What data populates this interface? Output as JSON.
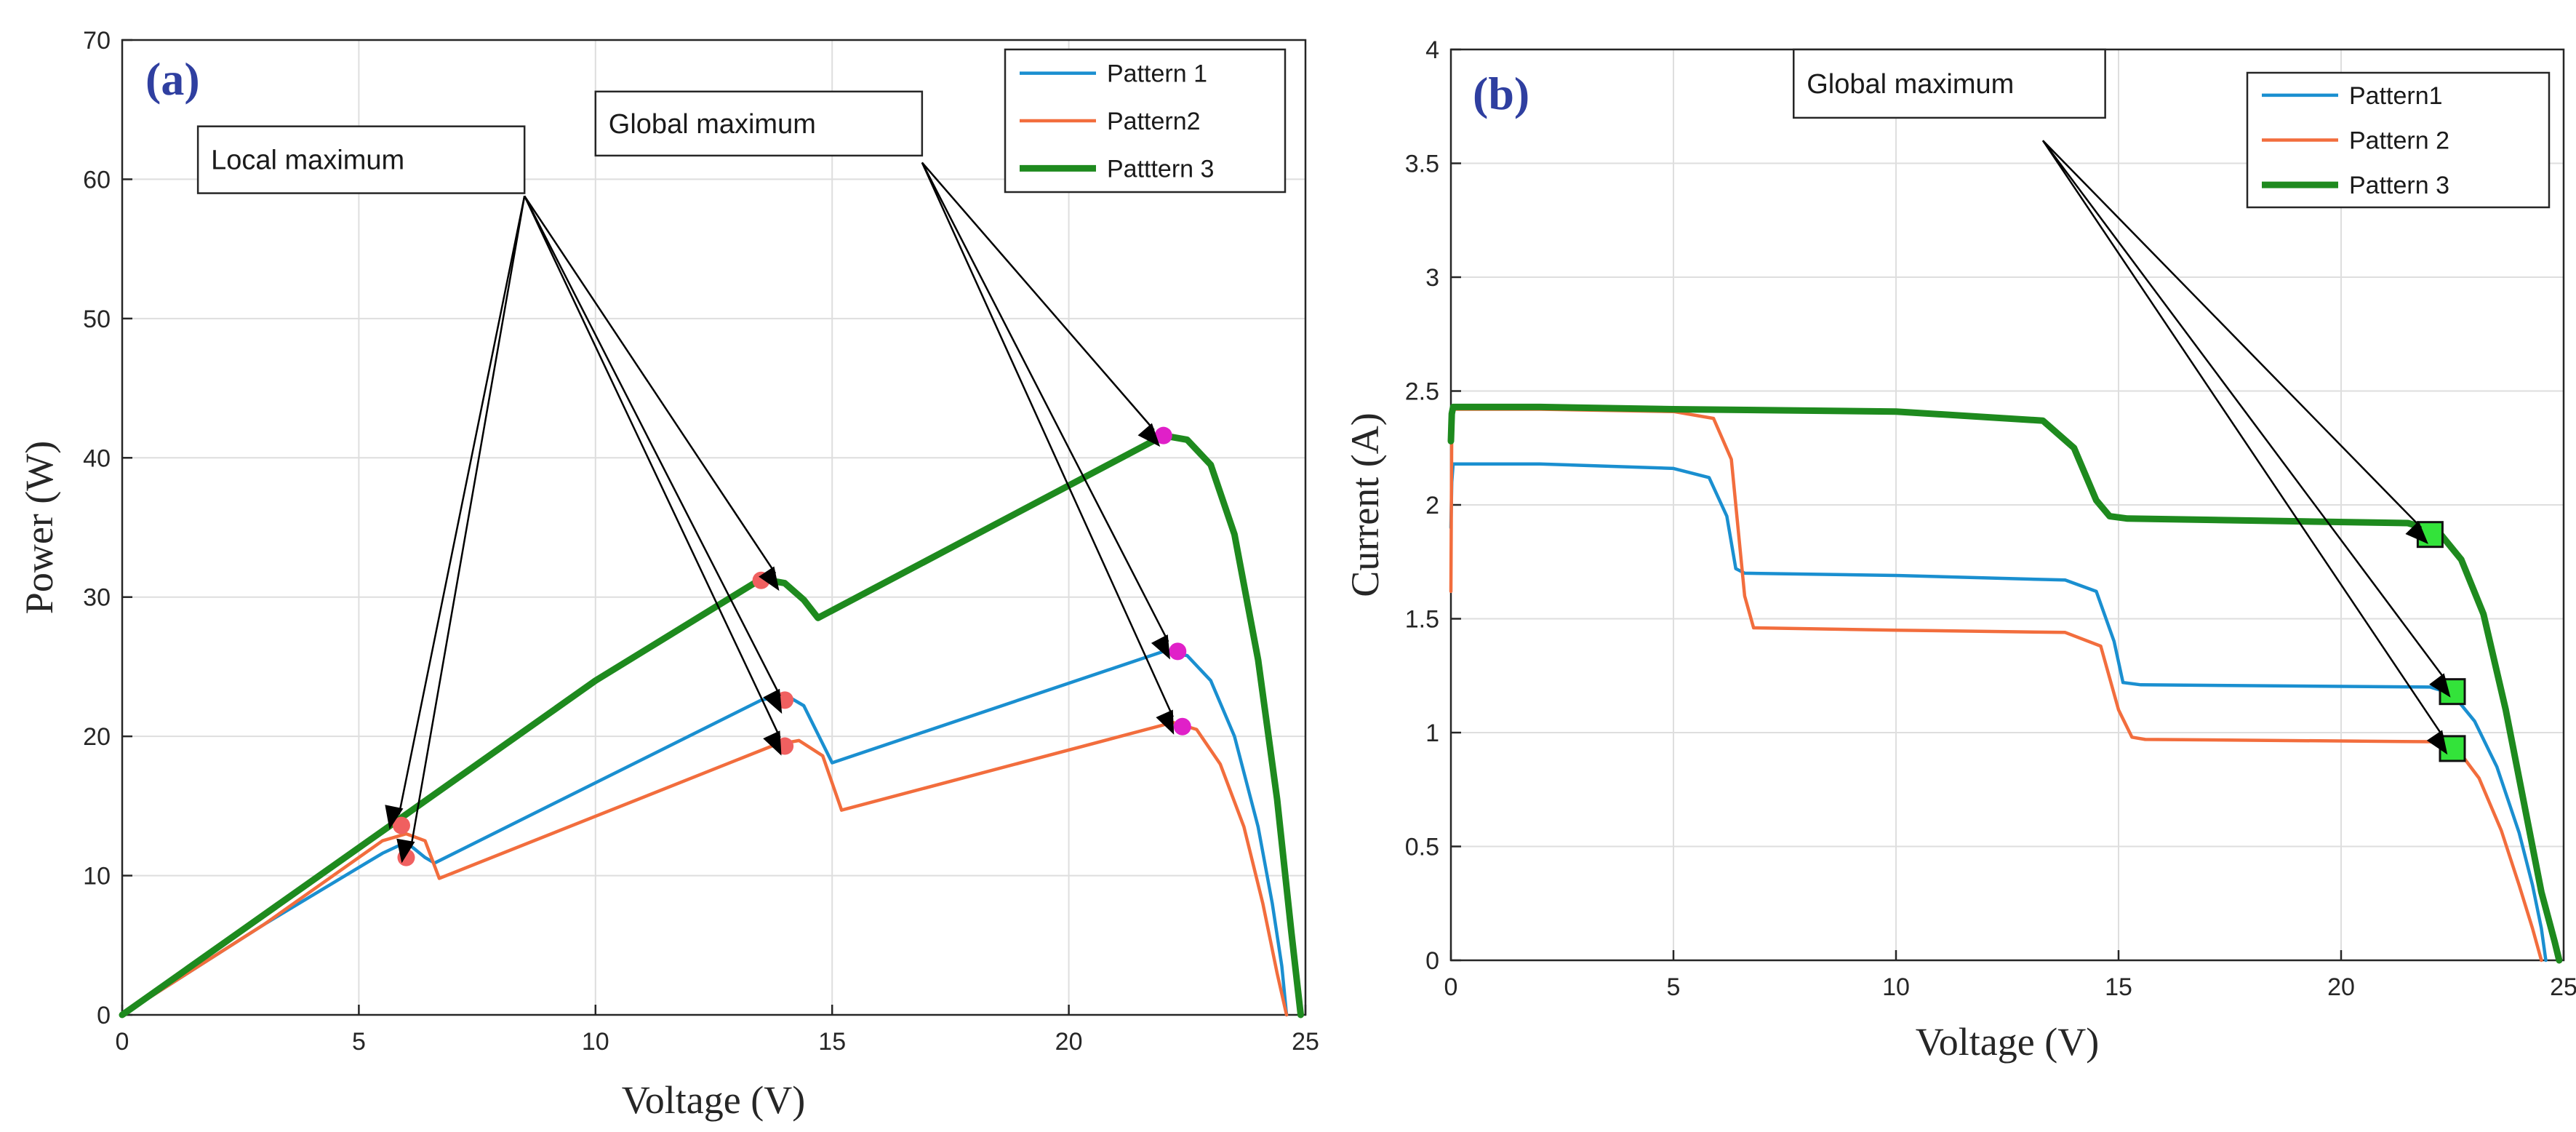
{
  "chart_data": [
    {
      "panel_label": "(a)",
      "type": "line",
      "xlabel": "Voltage (V)",
      "ylabel": "Power (W)",
      "xlim": [
        0,
        25
      ],
      "ylim": [
        0,
        70
      ],
      "xticks": [
        0,
        5,
        10,
        15,
        20,
        25
      ],
      "yticks": [
        0,
        10,
        20,
        30,
        40,
        50,
        60,
        70
      ],
      "grid": true,
      "legend_position": "top-right",
      "series": [
        {
          "name": "Pattern 1",
          "color": "#1a8fd0",
          "width": "normal",
          "x": [
            0,
            3,
            5.5,
            6.0,
            6.4,
            6.6,
            13.5,
            14.0,
            14.4,
            15.0,
            22.0,
            22.5,
            23.0,
            23.5,
            24.0,
            24.3,
            24.5,
            24.6
          ],
          "y": [
            0,
            6.5,
            11.6,
            12.4,
            11.3,
            10.9,
            22.6,
            23.0,
            22.2,
            18.1,
            26.1,
            25.8,
            24.0,
            20.0,
            13.5,
            8.0,
            3.5,
            0
          ]
        },
        {
          "name": "Pattern2",
          "color": "#f26d3d",
          "width": "normal",
          "x": [
            0,
            3,
            5.5,
            6.0,
            6.4,
            6.7,
            13.8,
            14.3,
            14.8,
            15.2,
            22.2,
            22.7,
            23.2,
            23.7,
            24.1,
            24.4,
            24.6
          ],
          "y": [
            0,
            6.5,
            12.5,
            13.0,
            12.5,
            9.8,
            19.4,
            19.7,
            18.6,
            14.7,
            21.0,
            20.5,
            18.0,
            13.5,
            8.0,
            3.0,
            0
          ]
        },
        {
          "name": "Patttern 3",
          "color": "#1e8a1e",
          "width": "bold",
          "x": [
            0,
            5,
            10,
            13.5,
            14.0,
            14.4,
            14.7,
            22.0,
            22.5,
            23.0,
            23.5,
            24.0,
            24.4,
            24.7,
            24.9
          ],
          "y": [
            0,
            12.0,
            24.0,
            31.3,
            31.0,
            29.8,
            28.5,
            41.6,
            41.3,
            39.5,
            34.5,
            25.5,
            15.5,
            6.0,
            0
          ]
        }
      ],
      "markers": [
        {
          "x": 5.9,
          "y": 13.6,
          "color": "#f06060"
        },
        {
          "x": 6.0,
          "y": 11.3,
          "color": "#f06060"
        },
        {
          "x": 14.0,
          "y": 22.6,
          "color": "#f06060"
        },
        {
          "x": 14.0,
          "y": 19.3,
          "color": "#f06060"
        },
        {
          "x": 13.5,
          "y": 31.2,
          "color": "#f06060"
        },
        {
          "x": 22.0,
          "y": 41.6,
          "color": "#e020c8"
        },
        {
          "x": 22.3,
          "y": 26.1,
          "color": "#e020c8"
        },
        {
          "x": 22.4,
          "y": 20.7,
          "color": "#e020c8"
        }
      ],
      "annotations": [
        {
          "text": "Local maximum",
          "box": {
            "x0": 1.6,
            "x1": 8.5,
            "y0": 59.0,
            "y1": 63.8
          },
          "origin": {
            "x": 8.5,
            "y": 58.8
          },
          "targets": [
            {
              "x": 5.85,
              "y": 14.4
            },
            {
              "x": 6.1,
              "y": 12.0
            },
            {
              "x": 13.8,
              "y": 31.7
            },
            {
              "x": 13.9,
              "y": 22.9
            },
            {
              "x": 13.9,
              "y": 19.9
            }
          ]
        },
        {
          "text": "Global maximum",
          "box": {
            "x0": 10.0,
            "x1": 16.9,
            "y0": 61.7,
            "y1": 66.3
          },
          "origin": {
            "x": 16.9,
            "y": 61.2
          },
          "targets": [
            {
              "x": 21.8,
              "y": 42.0
            },
            {
              "x": 22.1,
              "y": 26.8
            },
            {
              "x": 22.2,
              "y": 21.4
            }
          ]
        }
      ]
    },
    {
      "panel_label": "(b)",
      "type": "line",
      "xlabel": "Voltage (V)",
      "ylabel": "Current (A)",
      "xlim": [
        0,
        25
      ],
      "ylim": [
        0,
        4
      ],
      "xticks": [
        0,
        5,
        10,
        15,
        20,
        25
      ],
      "yticks": [
        0,
        0.5,
        1,
        1.5,
        2,
        2.5,
        3,
        3.5,
        4
      ],
      "grid": true,
      "legend_position": "top-right",
      "series": [
        {
          "name": "Pattern1",
          "color": "#1a8fd0",
          "width": "normal",
          "x": [
            0,
            0.02,
            0.05,
            2,
            5,
            5.8,
            6.2,
            6.4,
            6.6,
            10,
            13.8,
            14.5,
            14.9,
            15.1,
            15.5,
            22.0,
            22.5,
            23.0,
            23.5,
            24.0,
            24.3,
            24.5,
            24.6
          ],
          "y": [
            1.9,
            2.1,
            2.18,
            2.18,
            2.16,
            2.12,
            1.95,
            1.72,
            1.7,
            1.69,
            1.67,
            1.62,
            1.4,
            1.22,
            1.21,
            1.2,
            1.17,
            1.05,
            0.85,
            0.56,
            0.33,
            0.14,
            0
          ]
        },
        {
          "name": "Pattern 2",
          "color": "#f26d3d",
          "width": "normal",
          "x": [
            0,
            0.02,
            0.05,
            2,
            5,
            5.9,
            6.3,
            6.6,
            6.8,
            10,
            13.8,
            14.6,
            15.0,
            15.3,
            15.6,
            22.0,
            22.6,
            23.1,
            23.6,
            24.0,
            24.3,
            24.5
          ],
          "y": [
            1.62,
            2.35,
            2.42,
            2.42,
            2.41,
            2.38,
            2.2,
            1.6,
            1.46,
            1.45,
            1.44,
            1.38,
            1.1,
            0.98,
            0.97,
            0.96,
            0.93,
            0.8,
            0.57,
            0.33,
            0.14,
            0
          ]
        },
        {
          "name": "Pattern 3",
          "color": "#1e8a1e",
          "width": "bold",
          "x": [
            0,
            0.02,
            0.05,
            2,
            5,
            10,
            13.3,
            14.0,
            14.5,
            14.8,
            15.2,
            21.5,
            22.2,
            22.7,
            23.2,
            23.7,
            24.1,
            24.5,
            24.8,
            24.9
          ],
          "y": [
            2.28,
            2.4,
            2.43,
            2.43,
            2.42,
            2.41,
            2.37,
            2.25,
            2.02,
            1.95,
            1.94,
            1.92,
            1.88,
            1.76,
            1.52,
            1.1,
            0.7,
            0.3,
            0.08,
            0
          ]
        }
      ],
      "square_markers": [
        {
          "x": 22.0,
          "y": 1.87
        },
        {
          "x": 22.5,
          "y": 1.18
        },
        {
          "x": 22.5,
          "y": 0.93
        }
      ],
      "annotations": [
        {
          "text": "Global maximum",
          "box": {
            "x0": 7.7,
            "x1": 14.7,
            "y0": 3.7,
            "y1": 4.0
          },
          "origin": {
            "x": 13.3,
            "y": 3.6
          },
          "targets": [
            {
              "x": 21.8,
              "y": 1.9
            },
            {
              "x": 22.35,
              "y": 1.23
            },
            {
              "x": 22.3,
              "y": 0.98
            }
          ]
        }
      ]
    }
  ]
}
